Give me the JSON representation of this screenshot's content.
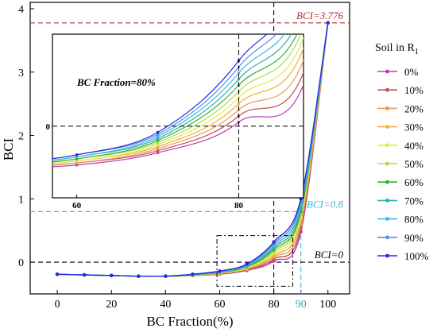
{
  "chart_data": {
    "type": "line",
    "xlabel": "BC Fraction(%)",
    "ylabel": "BCI",
    "xlim": [
      -10,
      108
    ],
    "ylim": [
      -0.5,
      4.1
    ],
    "x_ticks": [
      "0",
      "20",
      "40",
      "60",
      "80",
      "100"
    ],
    "y_ticks": [
      "0",
      "1",
      "2",
      "3",
      "4"
    ],
    "x": [
      0,
      10,
      20,
      30,
      40,
      50,
      60,
      70,
      80,
      90,
      100
    ],
    "legend": {
      "title": "Soil in R",
      "title_subscript": "1",
      "position": "right"
    },
    "series": [
      {
        "name": "0%",
        "color": "#b83cb8",
        "values": [
          -0.19,
          -0.2,
          -0.21,
          -0.22,
          -0.22,
          -0.21,
          -0.19,
          -0.13,
          0.02,
          0.48,
          3.776
        ]
      },
      {
        "name": "10%",
        "color": "#c0504d",
        "values": [
          -0.19,
          -0.2,
          -0.21,
          -0.22,
          -0.22,
          -0.21,
          -0.18,
          -0.12,
          0.05,
          0.54,
          3.776
        ]
      },
      {
        "name": "20%",
        "color": "#e59a5a",
        "values": [
          -0.19,
          -0.2,
          -0.21,
          -0.22,
          -0.22,
          -0.21,
          -0.18,
          -0.11,
          0.08,
          0.6,
          3.776
        ]
      },
      {
        "name": "30%",
        "color": "#f0b030",
        "values": [
          -0.19,
          -0.2,
          -0.21,
          -0.22,
          -0.22,
          -0.21,
          -0.17,
          -0.1,
          0.11,
          0.66,
          3.776
        ]
      },
      {
        "name": "40%",
        "color": "#e6e650",
        "values": [
          -0.19,
          -0.2,
          -0.21,
          -0.22,
          -0.22,
          -0.2,
          -0.17,
          -0.09,
          0.14,
          0.71,
          3.776
        ]
      },
      {
        "name": "50%",
        "color": "#a8dc50",
        "values": [
          -0.19,
          -0.2,
          -0.21,
          -0.22,
          -0.22,
          -0.2,
          -0.16,
          -0.08,
          0.17,
          0.76,
          3.776
        ]
      },
      {
        "name": "60%",
        "color": "#33b033",
        "values": [
          -0.19,
          -0.2,
          -0.21,
          -0.22,
          -0.22,
          -0.2,
          -0.16,
          -0.07,
          0.2,
          0.8,
          3.776
        ]
      },
      {
        "name": "70%",
        "color": "#30b0a0",
        "values": [
          -0.19,
          -0.2,
          -0.21,
          -0.22,
          -0.22,
          -0.2,
          -0.15,
          -0.06,
          0.23,
          0.85,
          3.776
        ]
      },
      {
        "name": "80%",
        "color": "#40b8e0",
        "values": [
          -0.19,
          -0.2,
          -0.21,
          -0.22,
          -0.22,
          -0.19,
          -0.15,
          -0.05,
          0.26,
          0.9,
          3.776
        ]
      },
      {
        "name": "90%",
        "color": "#5a8ae6",
        "values": [
          -0.19,
          -0.2,
          -0.21,
          -0.22,
          -0.22,
          -0.19,
          -0.14,
          -0.04,
          0.29,
          0.95,
          3.776
        ]
      },
      {
        "name": "100%",
        "color": "#2a2ae0",
        "values": [
          -0.19,
          -0.2,
          -0.21,
          -0.22,
          -0.22,
          -0.19,
          -0.14,
          -0.03,
          0.32,
          1.0,
          3.776
        ]
      }
    ],
    "reference_lines": [
      {
        "label": "BCI=3.776",
        "y": 3.776,
        "color": "#b03030"
      },
      {
        "label": "BCI=0.8",
        "y": 0.8,
        "x": 90,
        "color": "#3ab8c8"
      },
      {
        "label": "BCI=0",
        "y": 0,
        "color": "#000000"
      }
    ],
    "vertical_line_x": 80,
    "highlight_x_label": "90",
    "zoom_box": {
      "x": [
        59,
        87
      ],
      "y": [
        -0.38,
        0.42
      ]
    },
    "inset": {
      "annotation": "BC Fraction=80%",
      "x_ticks": [
        "60",
        "80"
      ],
      "y_ticks": [
        "0"
      ],
      "xlim": [
        57,
        88
      ],
      "ylim": [
        -0.35,
        0.45
      ]
    }
  }
}
